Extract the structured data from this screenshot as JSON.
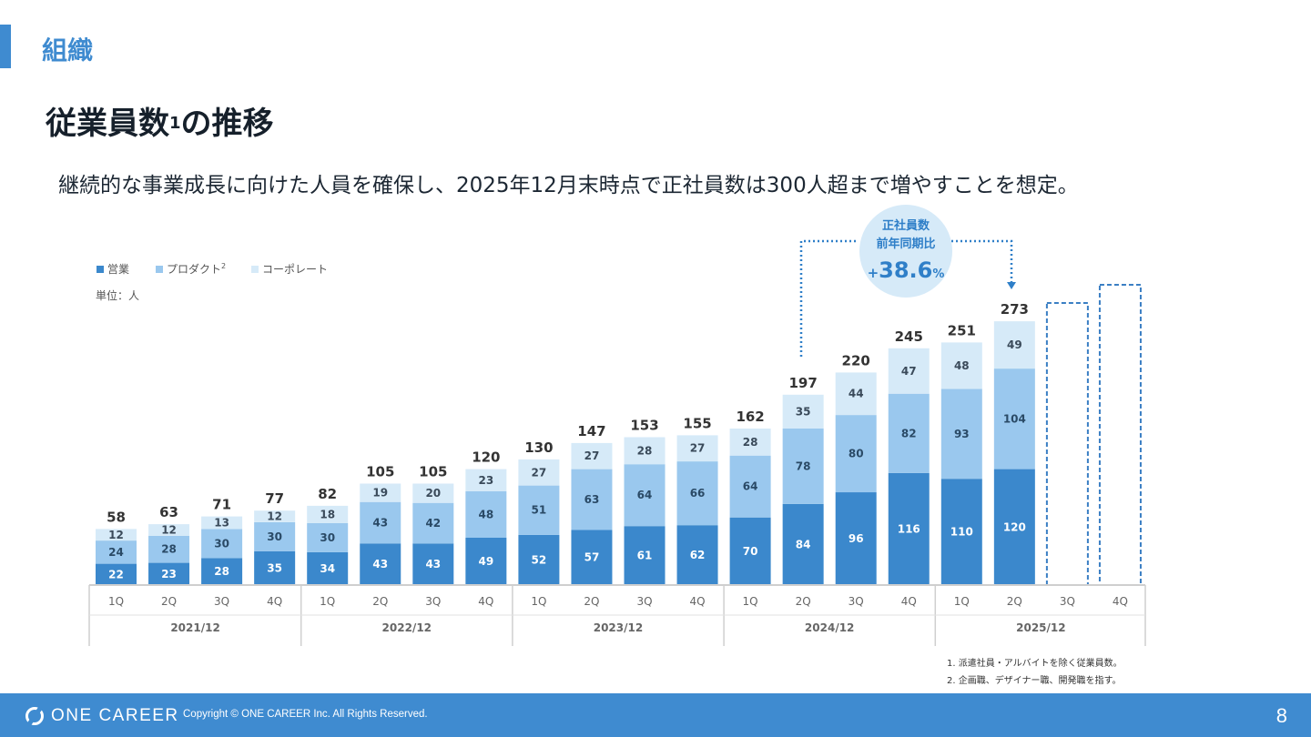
{
  "section": {
    "title": "組織"
  },
  "slide": {
    "title_main": "従業員数",
    "title_sup": "1",
    "title_tail": "の推移",
    "subtitle": "継続的な事業成長に向けた人員を確保し、2025年12月末時点で正社員数は300人超まで増やすことを想定。"
  },
  "chart_data": {
    "type": "bar",
    "stacked": true,
    "unit_label": "単位：人",
    "legend": [
      {
        "name": "営業",
        "color": "#3b88cc"
      },
      {
        "name": "プロダクト",
        "sup": "2",
        "color": "#9ac8ee"
      },
      {
        "name": "コーポレート",
        "color": "#d6eaf8"
      }
    ],
    "categories": [
      "1Q",
      "2Q",
      "3Q",
      "4Q",
      "1Q",
      "2Q",
      "3Q",
      "4Q",
      "1Q",
      "2Q",
      "3Q",
      "4Q",
      "1Q",
      "2Q",
      "3Q",
      "4Q",
      "1Q",
      "2Q",
      "3Q",
      "4Q"
    ],
    "groups": [
      "2021/12",
      "2022/12",
      "2023/12",
      "2024/12",
      "2025/12"
    ],
    "series": [
      {
        "name": "営業",
        "values": [
          22,
          23,
          28,
          35,
          34,
          43,
          43,
          49,
          52,
          57,
          61,
          62,
          70,
          84,
          96,
          116,
          110,
          120,
          null,
          null
        ]
      },
      {
        "name": "プロダクト",
        "values": [
          24,
          28,
          30,
          30,
          30,
          43,
          42,
          48,
          51,
          63,
          64,
          66,
          64,
          78,
          80,
          82,
          93,
          104,
          null,
          null
        ]
      },
      {
        "name": "コーポレート",
        "values": [
          12,
          12,
          13,
          12,
          18,
          19,
          20,
          23,
          27,
          27,
          28,
          27,
          28,
          35,
          44,
          47,
          48,
          49,
          null,
          null
        ]
      }
    ],
    "totals": [
      58,
      63,
      71,
      77,
      82,
      105,
      105,
      120,
      130,
      147,
      153,
      155,
      162,
      197,
      220,
      245,
      251,
      273,
      null,
      null
    ],
    "planned_columns": [
      18,
      19
    ],
    "annotation": {
      "line1": "正社員数",
      "line2": "前年同期比",
      "sign": "+",
      "value": "38.6",
      "unit": "%"
    },
    "ylim": [
      0,
      310
    ],
    "grid": false
  },
  "footnotes": [
    "1. 派遣社員・アルバイトを除く従業員数。",
    "2. 企画職、デザイナー職、開発職を指す。"
  ],
  "footer": {
    "logo_text": "ONE CAREER",
    "copyright": "Copyright © ONE CAREER Inc. All Rights Reserved.",
    "page": "8"
  }
}
